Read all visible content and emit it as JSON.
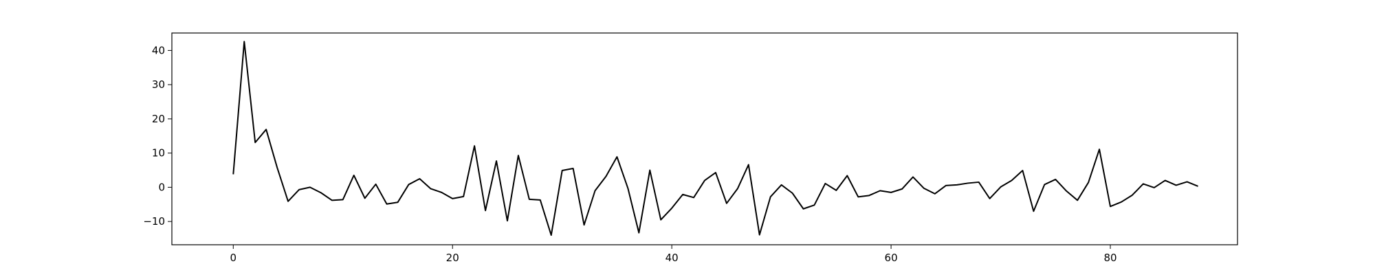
{
  "chart_data": {
    "type": "line",
    "title": "",
    "xlabel": "",
    "ylabel": "",
    "xlim": [
      -5.6,
      91.6
    ],
    "ylim": [
      -16.8,
      45.1
    ],
    "grid": false,
    "x_ticks": [
      0,
      20,
      40,
      60,
      80
    ],
    "y_ticks": [
      -10,
      0,
      10,
      20,
      30,
      40
    ],
    "line_color": "#000000",
    "x": [
      0,
      1,
      2,
      3,
      4,
      5,
      6,
      7,
      8,
      9,
      10,
      11,
      12,
      13,
      14,
      15,
      16,
      17,
      18,
      19,
      20,
      21,
      22,
      23,
      24,
      25,
      26,
      27,
      28,
      29,
      30,
      31,
      32,
      33,
      34,
      35,
      36,
      37,
      38,
      39,
      40,
      41,
      42,
      43,
      44,
      45,
      46,
      47,
      48,
      49,
      50,
      51,
      52,
      53,
      54,
      55,
      56,
      57,
      58,
      59,
      60,
      61,
      62,
      63,
      64,
      65,
      66,
      67,
      68,
      69,
      70,
      71,
      72,
      73,
      74,
      75,
      76,
      77,
      78,
      79,
      80,
      81,
      82,
      83,
      84,
      85,
      86,
      87,
      88
    ],
    "values": [
      3.8,
      42.6,
      13.1,
      16.9,
      5.8,
      -4.1,
      -0.7,
      0.0,
      -1.6,
      -3.8,
      -3.6,
      3.5,
      -3.2,
      0.9,
      -4.9,
      -4.4,
      0.8,
      2.5,
      -0.4,
      -1.5,
      -3.3,
      -2.7,
      12.1,
      -6.8,
      7.7,
      -9.8,
      9.3,
      -3.5,
      -3.7,
      -14.0,
      4.9,
      5.5,
      -11.0,
      -1.0,
      3.2,
      8.9,
      -0.3,
      -13.3,
      5.0,
      -9.5,
      -6.1,
      -2.1,
      -3.0,
      2.0,
      4.3,
      -4.7,
      -0.4,
      6.6,
      -13.9,
      -2.8,
      0.7,
      -1.7,
      -6.3,
      -5.2,
      1.1,
      -0.9,
      3.4,
      -2.8,
      -2.4,
      -1.0,
      -1.5,
      -0.5,
      3.0,
      -0.3,
      -1.9,
      0.5,
      0.7,
      1.2,
      1.5,
      -3.3,
      0.1,
      2.0,
      4.9,
      -7.0,
      0.8,
      2.3,
      -1.1,
      -3.8,
      1.4,
      11.1,
      -5.6,
      -4.3,
      -2.3,
      1.0,
      -0.1,
      2.0,
      0.6,
      1.6,
      0.3
    ]
  }
}
